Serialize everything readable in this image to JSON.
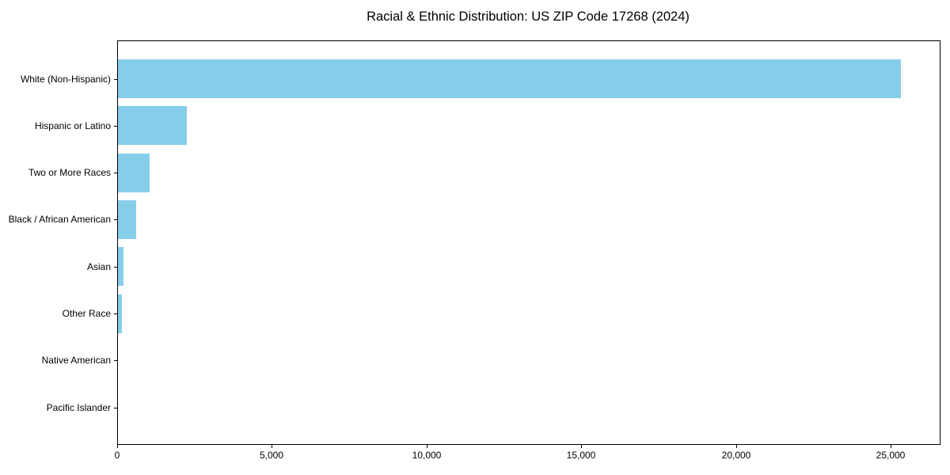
{
  "chart_data": {
    "type": "bar",
    "orientation": "horizontal",
    "title": "Racial & Ethnic Distribution: US ZIP Code 17268 (2024)",
    "categories": [
      "White (Non-Hispanic)",
      "Hispanic or Latino",
      "Two or More Races",
      "Black / African American",
      "Asian",
      "Other Race",
      "Native American",
      "Pacific Islander"
    ],
    "values": [
      25300,
      2220,
      1030,
      590,
      180,
      130,
      0,
      0
    ],
    "xlabel": "",
    "ylabel": "",
    "xlim": [
      0,
      26560
    ],
    "xtick_values": [
      0,
      5000,
      10000,
      15000,
      20000,
      25000
    ],
    "xtick_labels": [
      "0",
      "5,000",
      "10,000",
      "15,000",
      "20,000",
      "25,000"
    ],
    "bar_color": "#87CEEB",
    "axis_color": "#000000",
    "grid": false,
    "legend": null
  }
}
